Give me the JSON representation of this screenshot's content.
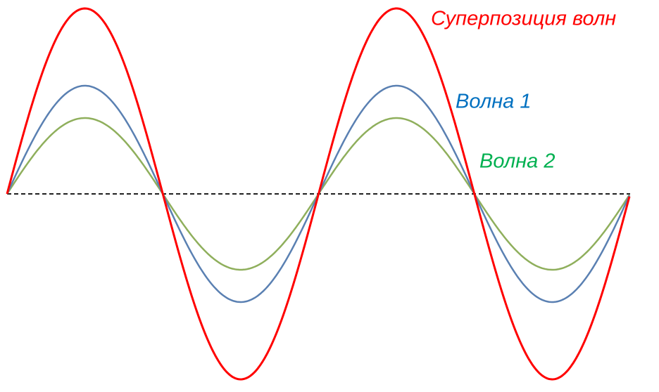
{
  "labels": {
    "superposition": "Суперпозиция волн",
    "wave1": "Волна 1",
    "wave2": "Волна 2"
  }
}
